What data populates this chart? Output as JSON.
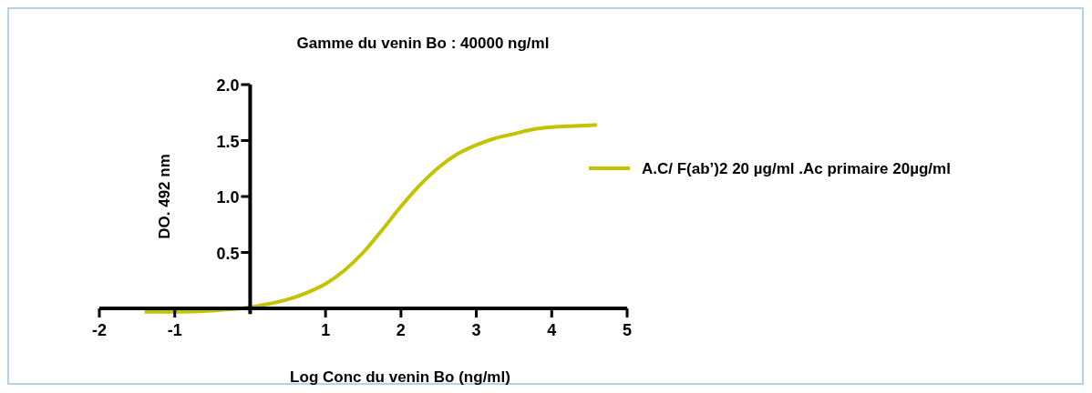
{
  "chart_data": {
    "type": "line",
    "title": "Gamme du venin Bo : 40000 ng/ml",
    "xlabel": "Log Conc du venin Bo (ng/ml)",
    "ylabel": "DO. 492 nm",
    "xlim": [
      -2,
      5
    ],
    "xticks": [
      -2,
      -1,
      1,
      2,
      3,
      4,
      5
    ],
    "ylim": [
      -0.05,
      2
    ],
    "yticks": [
      {
        "value": 0.5,
        "label": "0.5"
      },
      {
        "value": 1,
        "label": "1.0"
      },
      {
        "value": 1.5,
        "label": "1.5"
      },
      {
        "value": 2,
        "label": "2.0"
      }
    ],
    "legend": "right",
    "grid": false,
    "marker": "none",
    "line_style": "solid",
    "series": [
      {
        "name": "A.C/  F(ab’)2 20 µg/ml .Ac primaire 20µg/ml",
        "color": "#c3c300",
        "x": [
          -1.4,
          -1,
          -0.5,
          0,
          0.25,
          0.5,
          0.75,
          1,
          1.25,
          1.5,
          1.75,
          2,
          2.25,
          2.5,
          2.75,
          3,
          3.25,
          3.5,
          3.75,
          4,
          4.3,
          4.6
        ],
        "values": [
          -0.03,
          -0.03,
          -0.02,
          0.01,
          0.04,
          0.08,
          0.14,
          0.22,
          0.34,
          0.5,
          0.7,
          0.91,
          1.1,
          1.26,
          1.38,
          1.46,
          1.52,
          1.56,
          1.6,
          1.62,
          1.63,
          1.64
        ]
      }
    ]
  }
}
